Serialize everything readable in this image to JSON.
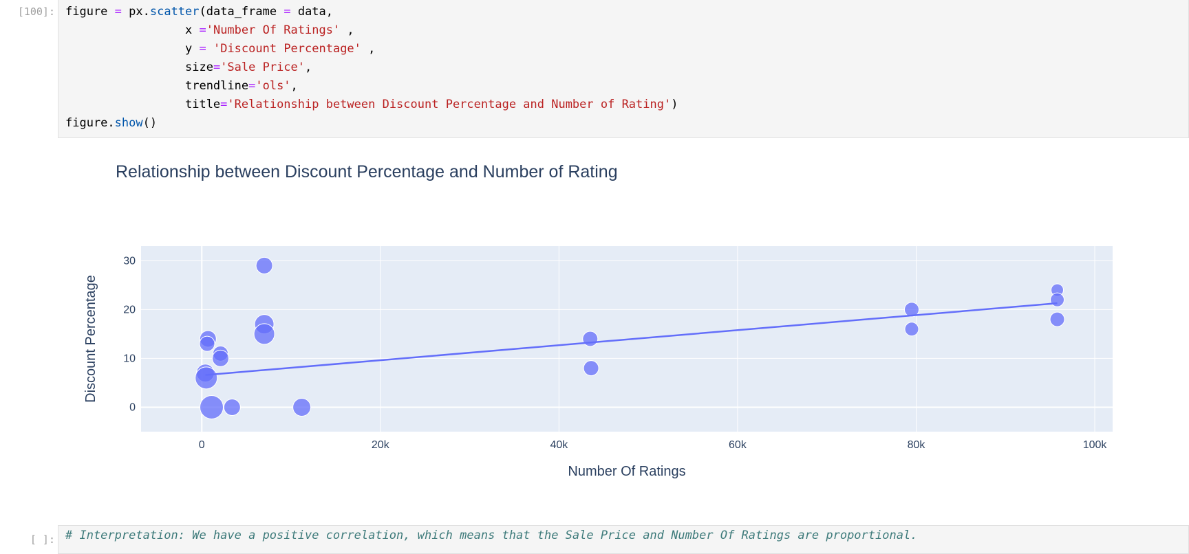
{
  "cells": [
    {
      "prompt": "[100]:",
      "code_lines": [
        [
          [
            "t",
            "figure "
          ],
          [
            "op",
            "="
          ],
          [
            "t",
            " px."
          ],
          [
            "fn",
            "scatter"
          ],
          [
            "t",
            "(data_frame "
          ],
          [
            "op",
            "="
          ],
          [
            "t",
            " data,"
          ]
        ],
        [
          [
            "t",
            "                 x "
          ],
          [
            "op",
            "="
          ],
          [
            "str",
            "'Number Of Ratings'"
          ],
          [
            "t",
            " ,"
          ]
        ],
        [
          [
            "t",
            "                 y "
          ],
          [
            "op",
            "="
          ],
          [
            "t",
            " "
          ],
          [
            "str",
            "'Discount Percentage'"
          ],
          [
            "t",
            " ,"
          ]
        ],
        [
          [
            "t",
            "                 size"
          ],
          [
            "op",
            "="
          ],
          [
            "str",
            "'Sale Price'"
          ],
          [
            "t",
            ","
          ]
        ],
        [
          [
            "t",
            "                 trendline"
          ],
          [
            "op",
            "="
          ],
          [
            "str",
            "'ols'"
          ],
          [
            "t",
            ","
          ]
        ],
        [
          [
            "t",
            "                 title"
          ],
          [
            "op",
            "="
          ],
          [
            "str",
            "'Relationship between Discount Percentage and Number of Rating'"
          ],
          [
            "t",
            ")"
          ]
        ],
        [
          [
            "t",
            "figure."
          ],
          [
            "fn",
            "show"
          ],
          [
            "t",
            "()"
          ]
        ]
      ]
    },
    {
      "prompt": "[ ]:",
      "code_lines": [
        [
          [
            "cm",
            "# Interpretation: We have a positive correlation, which means that the Sale Price and Number Of Ratings are proportional."
          ]
        ]
      ]
    }
  ],
  "chart_data": {
    "type": "scatter",
    "title": "Relationship between Discount Percentage and Number of Rating",
    "xlabel": "Number Of Ratings",
    "ylabel": "Discount Percentage",
    "xlim": [
      -6800,
      102000
    ],
    "ylim": [
      -5,
      33
    ],
    "x_ticks": [
      0,
      20000,
      40000,
      60000,
      80000,
      100000
    ],
    "x_tick_labels": [
      "0",
      "20k",
      "40k",
      "60k",
      "80k",
      "100k"
    ],
    "y_ticks": [
      0,
      10,
      20,
      30
    ],
    "y_tick_labels": [
      "0",
      "10",
      "20",
      "30"
    ],
    "grid": true,
    "colors": {
      "marker": "#636efa",
      "plot_bg": "#e5ecf6",
      "grid": "#ffffff",
      "text": "#2a3f5f"
    },
    "points": [
      {
        "x": 7000,
        "y": 29,
        "size": 18
      },
      {
        "x": 7000,
        "y": 17,
        "size": 22
      },
      {
        "x": 7000,
        "y": 15,
        "size": 24
      },
      {
        "x": 700,
        "y": 14,
        "size": 18
      },
      {
        "x": 600,
        "y": 13,
        "size": 16
      },
      {
        "x": 2100,
        "y": 11,
        "size": 16
      },
      {
        "x": 2100,
        "y": 10,
        "size": 18
      },
      {
        "x": 400,
        "y": 7,
        "size": 20
      },
      {
        "x": 500,
        "y": 6,
        "size": 26
      },
      {
        "x": 1100,
        "y": 0,
        "size": 28
      },
      {
        "x": 3400,
        "y": 0,
        "size": 18
      },
      {
        "x": 11200,
        "y": 0,
        "size": 20
      },
      {
        "x": 43500,
        "y": 14,
        "size": 16
      },
      {
        "x": 43600,
        "y": 8,
        "size": 16
      },
      {
        "x": 79500,
        "y": 20,
        "size": 15
      },
      {
        "x": 79500,
        "y": 16,
        "size": 14
      },
      {
        "x": 95800,
        "y": 24,
        "size": 12
      },
      {
        "x": 95800,
        "y": 22,
        "size": 14
      },
      {
        "x": 95800,
        "y": 18,
        "size": 15
      }
    ],
    "trendline": {
      "x": [
        400,
        95800
      ],
      "y": [
        6.6,
        21.3
      ]
    }
  }
}
